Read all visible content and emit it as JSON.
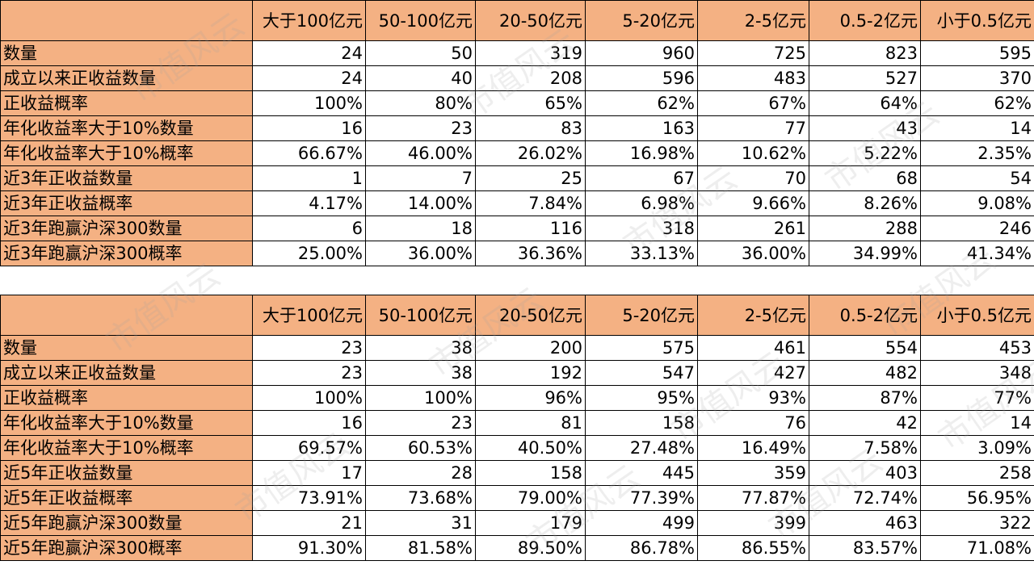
{
  "columns": [
    "大于100亿元",
    "50-100亿元",
    "20-50亿元",
    "5-20亿元",
    "2-5亿元",
    "0.5-2亿元",
    "小于0.5亿元"
  ],
  "tables": [
    {
      "rows": [
        {
          "label": "数量",
          "values": [
            "24",
            "50",
            "319",
            "960",
            "725",
            "823",
            "595"
          ]
        },
        {
          "label": "成立以来正收益数量",
          "values": [
            "24",
            "40",
            "208",
            "596",
            "483",
            "527",
            "370"
          ]
        },
        {
          "label": "正收益概率",
          "values": [
            "100%",
            "80%",
            "65%",
            "62%",
            "67%",
            "64%",
            "62%"
          ]
        },
        {
          "label": "年化收益率大于10%数量",
          "values": [
            "16",
            "23",
            "83",
            "163",
            "77",
            "43",
            "14"
          ]
        },
        {
          "label": "年化收益率大于10%概率",
          "values": [
            "66.67%",
            "46.00%",
            "26.02%",
            "16.98%",
            "10.62%",
            "5.22%",
            "2.35%"
          ]
        },
        {
          "label": "近3年正收益数量",
          "values": [
            "1",
            "7",
            "25",
            "67",
            "70",
            "68",
            "54"
          ]
        },
        {
          "label": "近3年正收益概率",
          "values": [
            "4.17%",
            "14.00%",
            "7.84%",
            "6.98%",
            "9.66%",
            "8.26%",
            "9.08%"
          ]
        },
        {
          "label": "近3年跑赢沪深300数量",
          "values": [
            "6",
            "18",
            "116",
            "318",
            "261",
            "288",
            "246"
          ]
        },
        {
          "label": "近3年跑赢沪深300概率",
          "values": [
            "25.00%",
            "36.00%",
            "36.36%",
            "33.13%",
            "36.00%",
            "34.99%",
            "41.34%"
          ]
        }
      ]
    },
    {
      "rows": [
        {
          "label": "数量",
          "values": [
            "23",
            "38",
            "200",
            "575",
            "461",
            "554",
            "453"
          ]
        },
        {
          "label": "成立以来正收益数量",
          "values": [
            "23",
            "38",
            "192",
            "547",
            "427",
            "482",
            "348"
          ]
        },
        {
          "label": "正收益概率",
          "values": [
            "100%",
            "100%",
            "96%",
            "95%",
            "93%",
            "87%",
            "77%"
          ]
        },
        {
          "label": "年化收益率大于10%数量",
          "values": [
            "16",
            "23",
            "81",
            "158",
            "76",
            "42",
            "14"
          ]
        },
        {
          "label": "年化收益率大于10%概率",
          "values": [
            "69.57%",
            "60.53%",
            "40.50%",
            "27.48%",
            "16.49%",
            "7.58%",
            "3.09%"
          ]
        },
        {
          "label": "近5年正收益数量",
          "values": [
            "17",
            "28",
            "158",
            "445",
            "359",
            "403",
            "258"
          ]
        },
        {
          "label": "近5年正收益概率",
          "values": [
            "73.91%",
            "73.68%",
            "79.00%",
            "77.39%",
            "77.87%",
            "72.74%",
            "56.95%"
          ]
        },
        {
          "label": "近5年跑赢沪深300数量",
          "values": [
            "21",
            "31",
            "179",
            "499",
            "399",
            "463",
            "322"
          ]
        },
        {
          "label": "近5年跑赢沪深300概率",
          "values": [
            "91.30%",
            "81.58%",
            "89.50%",
            "86.78%",
            "86.55%",
            "83.57%",
            "71.08%"
          ]
        }
      ]
    }
  ],
  "watermark_text": "市值风云",
  "colors": {
    "header_fill": "#f4b183",
    "border": "#000000",
    "cell_fill": "#ffffff"
  }
}
